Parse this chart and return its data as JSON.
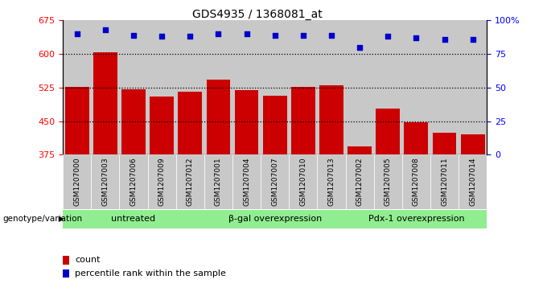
{
  "title": "GDS4935 / 1368081_at",
  "samples": [
    "GSM1207000",
    "GSM1207003",
    "GSM1207006",
    "GSM1207009",
    "GSM1207012",
    "GSM1207001",
    "GSM1207004",
    "GSM1207007",
    "GSM1207010",
    "GSM1207013",
    "GSM1207002",
    "GSM1207005",
    "GSM1207008",
    "GSM1207011",
    "GSM1207014"
  ],
  "counts": [
    527,
    604,
    521,
    505,
    516,
    543,
    519,
    507,
    526,
    530,
    393,
    479,
    448,
    425,
    421
  ],
  "percentile_ranks": [
    90,
    93,
    89,
    88,
    88,
    90,
    90,
    89,
    89,
    89,
    80,
    88,
    87,
    86,
    86
  ],
  "groups": [
    {
      "label": "untreated",
      "start": 0,
      "end": 5
    },
    {
      "label": "β-gal overexpression",
      "start": 5,
      "end": 10
    },
    {
      "label": "Pdx-1 overexpression",
      "start": 10,
      "end": 15
    }
  ],
  "ylim_left": [
    375,
    675
  ],
  "ylim_right": [
    0,
    100
  ],
  "yticks_left": [
    375,
    450,
    525,
    600,
    675
  ],
  "yticks_right": [
    0,
    25,
    50,
    75,
    100
  ],
  "bar_color": "#cc0000",
  "dot_color": "#0000cc",
  "group_bg_color": "#90ee90",
  "bar_bg_color": "#c8c8c8",
  "bg_white": "#ffffff",
  "bar_width": 0.85,
  "genotype_label": "genotype/variation",
  "legend_count": "count",
  "legend_percentile": "percentile rank within the sample"
}
